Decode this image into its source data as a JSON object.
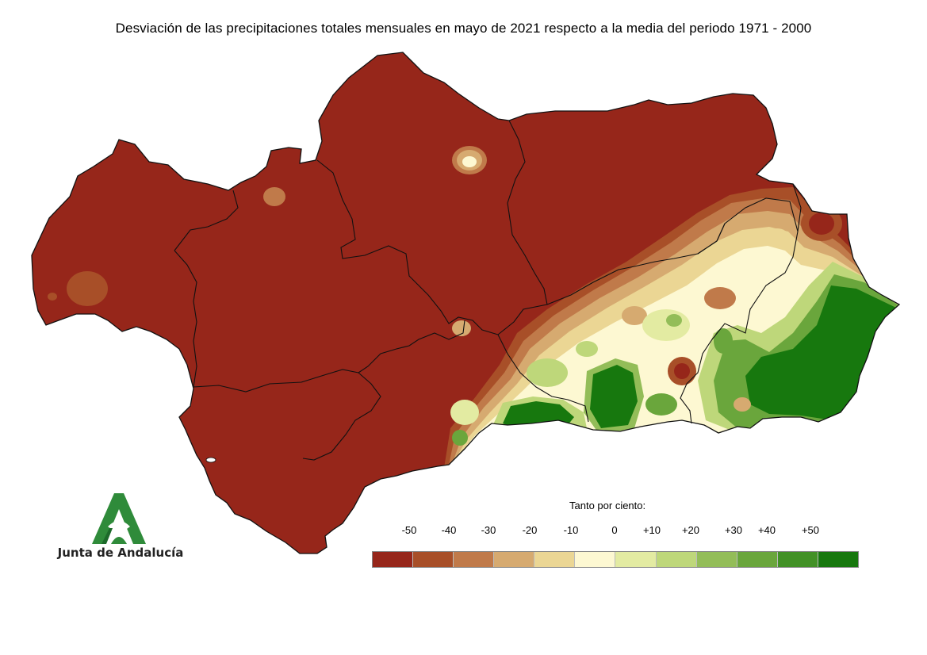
{
  "title": "Desviación de las precipitaciones totales mensuales en mayo de 2021 respecto a la media del periodo 1971 - 2000",
  "legend": {
    "title": "Tanto por ciento:",
    "ticks": [
      "-50",
      "-40",
      "-30",
      "-20",
      "-10",
      "0",
      "+10",
      "+20",
      "+30",
      "+40",
      "+50"
    ],
    "colors": [
      "#96261a",
      "#a84f28",
      "#c07a4a",
      "#d6aa70",
      "#ebd694",
      "#fdf8d2",
      "#e3eba2",
      "#bed77a",
      "#93bd58",
      "#6aa63c",
      "#429126",
      "#17780e"
    ]
  },
  "logo": {
    "text": "Junta de Andalucía",
    "icon": "junta-andalucia-logo-icon",
    "color": "#2f8b3a"
  },
  "map": {
    "region": "Andalucía",
    "dry_color": "#96261a",
    "border_color": "#111111"
  }
}
